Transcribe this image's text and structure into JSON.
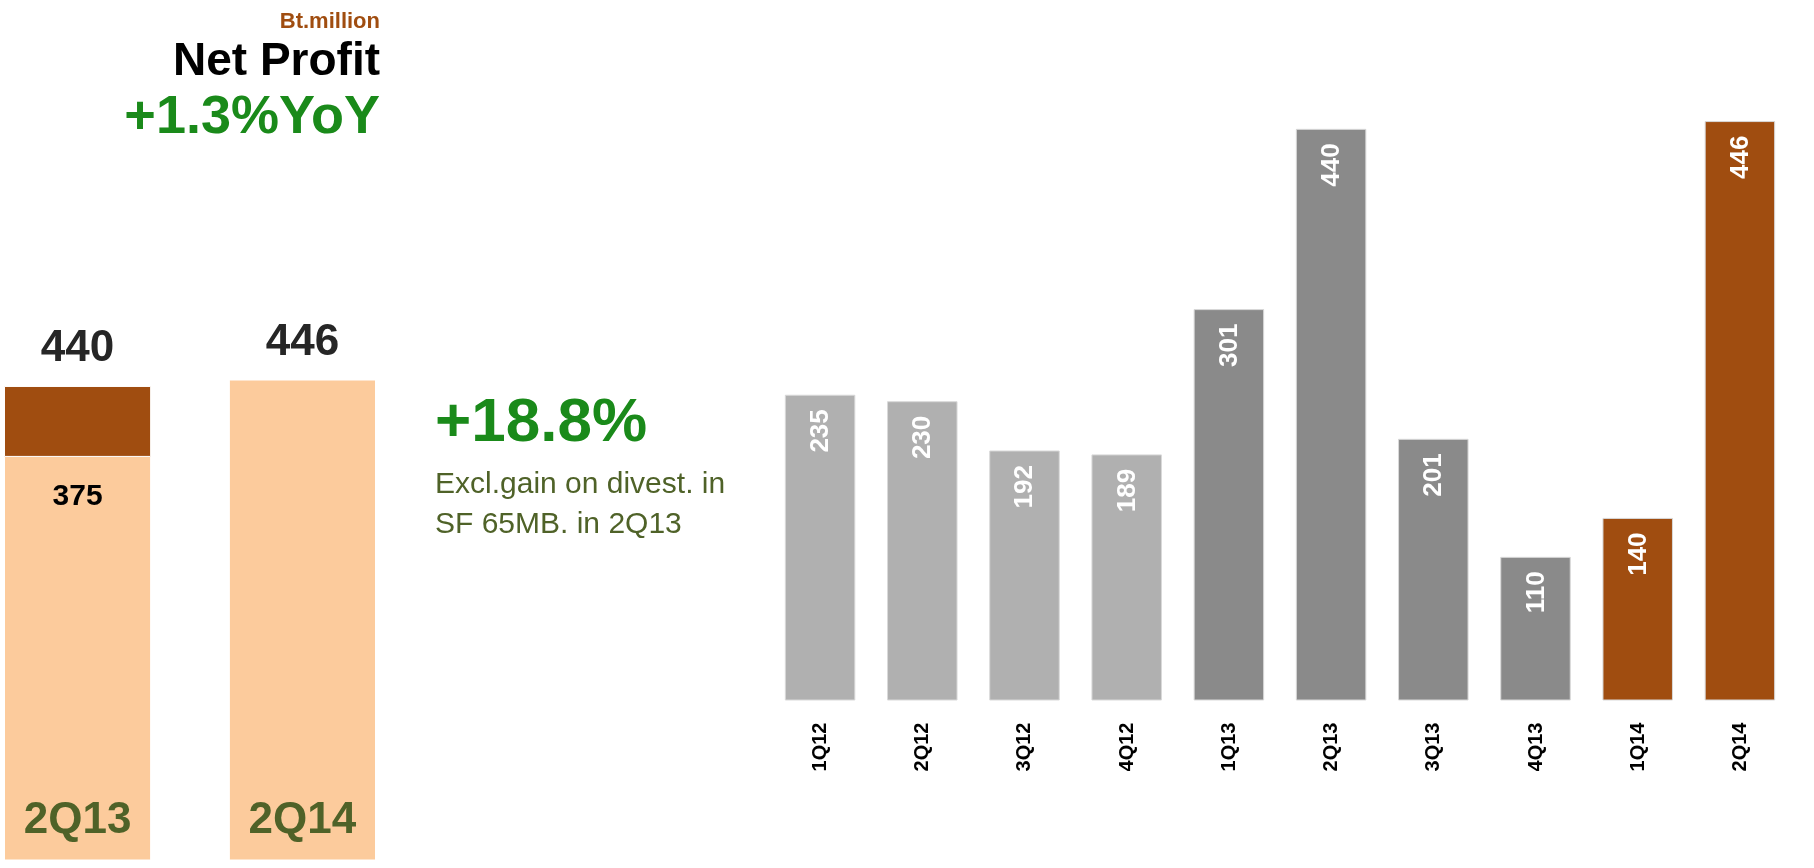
{
  "chart_data": [
    {
      "type": "bar",
      "stacked": true,
      "subtitle": "Bt.million",
      "title": "Net Profit",
      "categories": [
        "2Q13",
        "2Q14"
      ],
      "series": [
        {
          "color": "#fccb9c",
          "values": [
            375,
            446
          ],
          "value_labels": [
            "375",
            null
          ]
        },
        {
          "color": "#a04d10",
          "values": [
            65,
            null
          ]
        }
      ],
      "totals": [
        "440",
        "446"
      ],
      "annotations": [
        "+1.3%YoY",
        "+18.8%",
        "Excl.gain on divest. in SF 65MB. in 2Q13"
      ]
    },
    {
      "type": "bar",
      "categories": [
        "1Q12",
        "2Q12",
        "3Q12",
        "4Q12",
        "1Q13",
        "2Q13",
        "3Q13",
        "4Q13",
        "1Q14",
        "2Q14"
      ],
      "values": [
        235,
        230,
        192,
        189,
        301,
        440,
        201,
        110,
        140,
        446
      ],
      "colors": [
        "#b0b0b0",
        "#b0b0b0",
        "#b0b0b0",
        "#b0b0b0",
        "#8a8a8a",
        "#8a8a8a",
        "#8a8a8a",
        "#8a8a8a",
        "#a04d10",
        "#a04d10"
      ],
      "data_labels": true
    }
  ]
}
